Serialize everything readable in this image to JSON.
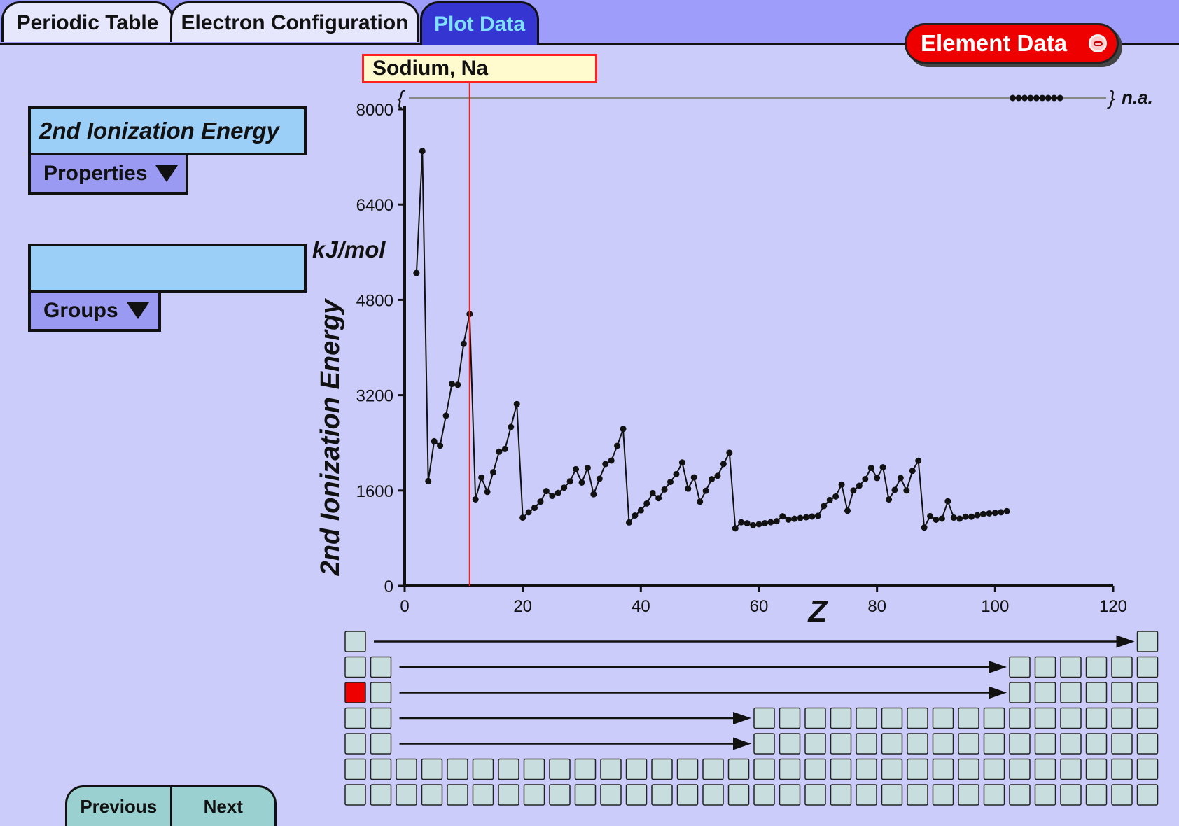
{
  "tabs": [
    {
      "label": "Periodic Table"
    },
    {
      "label": "Electron Configuration"
    },
    {
      "label": "Plot Data"
    }
  ],
  "element_data_button": {
    "label": "Element Data"
  },
  "property": {
    "selected": "2nd Ionization Energy",
    "dropdown_label": "Properties"
  },
  "groups": {
    "selected": "",
    "dropdown_label": "Groups"
  },
  "unit": "kJ/mol",
  "tooltip": {
    "text": "Sodium, Na"
  },
  "nav": {
    "previous": "Previous",
    "next": "Next"
  },
  "colors": {
    "accent": "#3535d2",
    "highlight": "#ee0000",
    "cell": "#c8dede"
  },
  "periodic_grid": {
    "columns": 32,
    "rows": [
      {
        "left": [
          1
        ],
        "right": [
          32
        ],
        "arrow_to": 32
      },
      {
        "left": [
          1,
          2
        ],
        "right": [
          27,
          28,
          29,
          30,
          31,
          32
        ],
        "arrow_to": 27
      },
      {
        "left": [
          1,
          2
        ],
        "right": [
          27,
          28,
          29,
          30,
          31,
          32
        ],
        "arrow_to": 27
      },
      {
        "left": [
          1,
          2
        ],
        "right": [
          17,
          18,
          19,
          20,
          21,
          22,
          23,
          24,
          25,
          26,
          27,
          28,
          29,
          30,
          31,
          32
        ],
        "arrow_to": 17
      },
      {
        "left": [
          1,
          2
        ],
        "right": [
          17,
          18,
          19,
          20,
          21,
          22,
          23,
          24,
          25,
          26,
          27,
          28,
          29,
          30,
          31,
          32
        ],
        "arrow_to": 17
      },
      {
        "left": [
          1,
          2,
          3,
          4,
          5,
          6,
          7,
          8,
          9,
          10,
          11,
          12,
          13,
          14,
          15,
          16,
          17,
          18,
          19,
          20,
          21,
          22,
          23,
          24,
          25,
          26,
          27,
          28,
          29,
          30,
          31,
          32
        ],
        "right": [],
        "arrow_to": null
      },
      {
        "left": [
          1,
          2,
          3,
          4,
          5,
          6,
          7,
          8,
          9,
          10,
          11,
          12,
          13,
          14,
          15,
          16,
          17,
          18,
          19,
          20,
          21,
          22,
          23,
          24,
          25,
          26,
          27,
          28,
          29,
          30,
          31,
          32
        ],
        "right": [],
        "arrow_to": null
      }
    ],
    "selected": {
      "row": 3,
      "col": 1
    }
  },
  "chart_data": {
    "type": "line",
    "xlabel": "Z",
    "ylabel": "2nd Ionization Energy",
    "xlim": [
      0,
      120
    ],
    "ylim": [
      0,
      8000
    ],
    "xticks": [
      0,
      20,
      40,
      60,
      80,
      100,
      120
    ],
    "yticks": [
      0,
      1600,
      3200,
      4800,
      6400,
      8000
    ],
    "na_label": "n.a.",
    "na_band": {
      "open": "{",
      "close": "}"
    },
    "na_elements": [
      103,
      104,
      105,
      106,
      107,
      108,
      109,
      110,
      111
    ],
    "selected_z": 11,
    "series": [
      {
        "x": [
          2,
          3,
          4,
          5,
          6,
          7,
          8,
          9,
          10,
          11,
          12,
          13,
          14,
          15,
          16,
          17,
          18,
          19,
          20,
          21,
          22,
          23,
          24,
          25,
          26,
          27,
          28,
          29,
          30,
          31,
          32,
          33,
          34,
          35,
          36,
          37,
          38,
          39,
          40,
          41,
          42,
          43,
          44,
          45,
          46,
          47,
          48,
          49,
          50,
          51,
          52,
          53,
          54,
          55,
          56,
          57,
          58,
          59,
          60,
          61,
          62,
          63,
          64,
          65,
          66,
          67,
          68,
          69,
          70,
          71,
          72,
          73,
          74,
          75,
          76,
          77,
          78,
          79,
          80,
          81,
          82,
          83,
          84,
          85,
          86,
          87,
          88,
          89,
          90,
          91,
          92,
          93,
          94,
          95,
          96,
          97,
          98,
          99,
          100,
          101,
          102
        ],
        "y": [
          5250,
          7298,
          1757,
          2427,
          2353,
          2856,
          3388,
          3374,
          4063,
          4562,
          1451,
          1817,
          1577,
          1907,
          2252,
          2298,
          2666,
          3052,
          1145,
          1235,
          1310,
          1414,
          1591,
          1509,
          1561,
          1648,
          1753,
          1958,
          1733,
          1979,
          1537,
          1798,
          2045,
          2103,
          2350,
          2633,
          1064,
          1180,
          1267,
          1382,
          1558,
          1472,
          1617,
          1744,
          1875,
          2070,
          1631,
          1820,
          1412,
          1595,
          1790,
          1846,
          2046,
          2234,
          965,
          1067,
          1050,
          1018,
          1035,
          1052,
          1068,
          1085,
          1167,
          1112,
          1126,
          1139,
          1151,
          1163,
          1176,
          1340,
          1440,
          1500,
          1700,
          1260,
          1600,
          1680,
          1791,
          1980,
          1810,
          1990,
          1450,
          1610,
          1810,
          1600,
          1930,
          2100,
          979,
          1170,
          1110,
          1128,
          1420,
          1145,
          1128,
          1160,
          1160,
          1186,
          1206,
          1216,
          1225,
          1235,
          1254
        ]
      }
    ]
  }
}
